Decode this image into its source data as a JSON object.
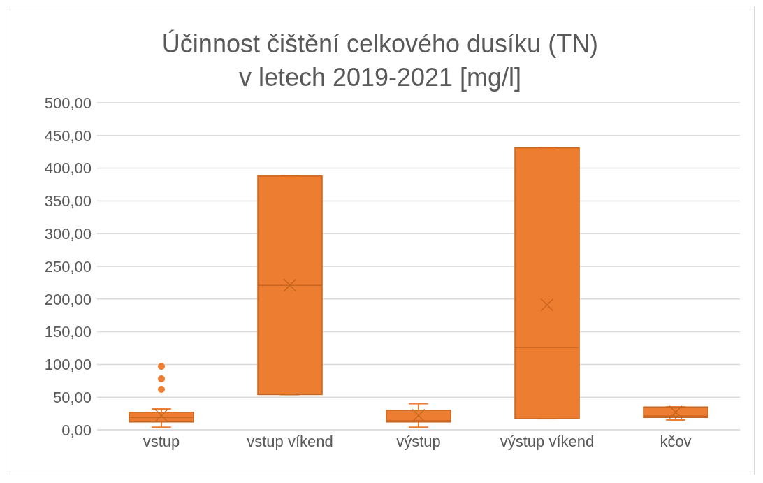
{
  "chart_data": {
    "type": "box",
    "title": "Účinnost čištění celkového dusíku (TN)\nv letech 2019-2021 [mg/l]",
    "categories": [
      "vstup",
      "vstup víkend",
      "výstup",
      "výstup víkend",
      "kčov"
    ],
    "color": "#ed7d31",
    "boxes": [
      {
        "low": 4,
        "q1": 12,
        "median": 19,
        "q3": 27,
        "high": 32,
        "mean": 22,
        "outliers": [
          97,
          78,
          62
        ]
      },
      {
        "low": 54,
        "q1": 54,
        "median": 221,
        "q3": 388,
        "high": 388,
        "mean": 221
      },
      {
        "low": 4,
        "q1": 12,
        "median": 14,
        "q3": 30,
        "high": 40,
        "mean": 22
      },
      {
        "low": 17,
        "q1": 17,
        "median": 126,
        "q3": 431,
        "high": 431,
        "mean": 191
      },
      {
        "low": 15,
        "q1": 19,
        "median": 21,
        "q3": 35,
        "high": 35,
        "mean": 27
      }
    ],
    "ylim": [
      0,
      500
    ],
    "yticks": [
      {
        "value": 0,
        "label": "0,00"
      },
      {
        "value": 50,
        "label": "50,00"
      },
      {
        "value": 100,
        "label": "100,00"
      },
      {
        "value": 150,
        "label": "150,00"
      },
      {
        "value": 200,
        "label": "200,00"
      },
      {
        "value": 250,
        "label": "250,00"
      },
      {
        "value": 300,
        "label": "300,00"
      },
      {
        "value": 350,
        "label": "350,00"
      },
      {
        "value": 400,
        "label": "400,00"
      },
      {
        "value": 450,
        "label": "450,00"
      },
      {
        "value": 500,
        "label": "500,00"
      }
    ],
    "grid": "y"
  }
}
